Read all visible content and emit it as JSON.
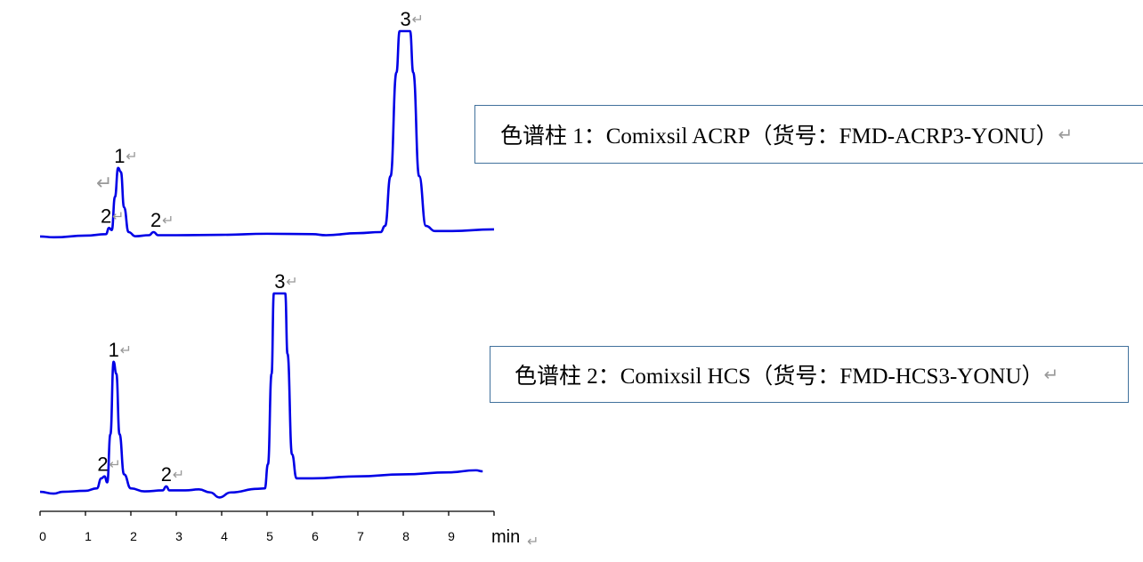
{
  "chart_data": [
    {
      "type": "line",
      "caption": "色谱柱 1：Comixsil ACRP（货号：FMD-ACRP3-YONU）",
      "xlim": [
        0,
        10
      ],
      "color": "#0000e6",
      "peak_labels": [
        {
          "text": "1",
          "t": 1.75
        },
        {
          "text": "2",
          "t": 1.45
        },
        {
          "text": "2",
          "t": 2.55
        },
        {
          "text": "3",
          "t": 8.05
        }
      ],
      "points": [
        [
          0,
          0.9
        ],
        [
          0.3,
          0.5
        ],
        [
          1.0,
          1.3
        ],
        [
          1.45,
          2
        ],
        [
          1.52,
          5
        ],
        [
          1.58,
          4
        ],
        [
          1.65,
          20
        ],
        [
          1.72,
          34
        ],
        [
          1.78,
          32
        ],
        [
          1.85,
          15
        ],
        [
          1.95,
          3
        ],
        [
          2.1,
          1
        ],
        [
          2.4,
          1.5
        ],
        [
          2.5,
          3
        ],
        [
          2.6,
          1.5
        ],
        [
          3,
          1.5
        ],
        [
          4,
          1.7
        ],
        [
          5,
          2.2
        ],
        [
          6,
          2
        ],
        [
          6.3,
          1.5
        ],
        [
          7,
          2.5
        ],
        [
          7.5,
          3
        ],
        [
          7.6,
          6
        ],
        [
          7.72,
          30
        ],
        [
          7.85,
          80
        ],
        [
          7.92,
          100
        ],
        [
          8.15,
          100
        ],
        [
          8.22,
          80
        ],
        [
          8.35,
          30
        ],
        [
          8.5,
          6
        ],
        [
          8.7,
          3.5
        ],
        [
          9,
          3.5
        ],
        [
          10,
          4.3
        ]
      ]
    },
    {
      "type": "line",
      "caption": "色谱柱 2：Comixsil HCS（货号：FMD-HCS3-YONU）",
      "xlim": [
        0,
        10
      ],
      "color": "#0000e6",
      "peak_labels": [
        {
          "text": "1",
          "t": 1.62
        },
        {
          "text": "2",
          "t": 1.38
        },
        {
          "text": "2",
          "t": 2.78
        },
        {
          "text": "3",
          "t": 5.28
        }
      ],
      "points": [
        [
          0,
          1.3
        ],
        [
          0.3,
          0.4
        ],
        [
          0.5,
          1.3
        ],
        [
          1.0,
          1.8
        ],
        [
          1.25,
          3
        ],
        [
          1.35,
          8
        ],
        [
          1.42,
          9
        ],
        [
          1.48,
          6
        ],
        [
          1.55,
          30
        ],
        [
          1.62,
          66
        ],
        [
          1.68,
          60
        ],
        [
          1.75,
          30
        ],
        [
          1.85,
          10
        ],
        [
          2.0,
          3
        ],
        [
          2.3,
          1.5
        ],
        [
          2.7,
          2
        ],
        [
          2.78,
          4
        ],
        [
          2.85,
          2
        ],
        [
          3.2,
          2
        ],
        [
          3.5,
          2.5
        ],
        [
          3.75,
          1
        ],
        [
          3.95,
          -1.5
        ],
        [
          4.2,
          1
        ],
        [
          4.8,
          2.8
        ],
        [
          4.95,
          3
        ],
        [
          5.02,
          15
        ],
        [
          5.1,
          60
        ],
        [
          5.15,
          100
        ],
        [
          5.4,
          100
        ],
        [
          5.45,
          70
        ],
        [
          5.55,
          20
        ],
        [
          5.65,
          8
        ],
        [
          6,
          8
        ],
        [
          7,
          9
        ],
        [
          8,
          10
        ],
        [
          9,
          11
        ],
        [
          9.6,
          12
        ],
        [
          9.75,
          11.5
        ]
      ]
    }
  ],
  "x_axis": {
    "ticks": [
      "0",
      "1",
      "2",
      "3",
      "4",
      "5",
      "6",
      "7",
      "8",
      "9"
    ],
    "unit": "min"
  },
  "paragraph_mark": "↵"
}
